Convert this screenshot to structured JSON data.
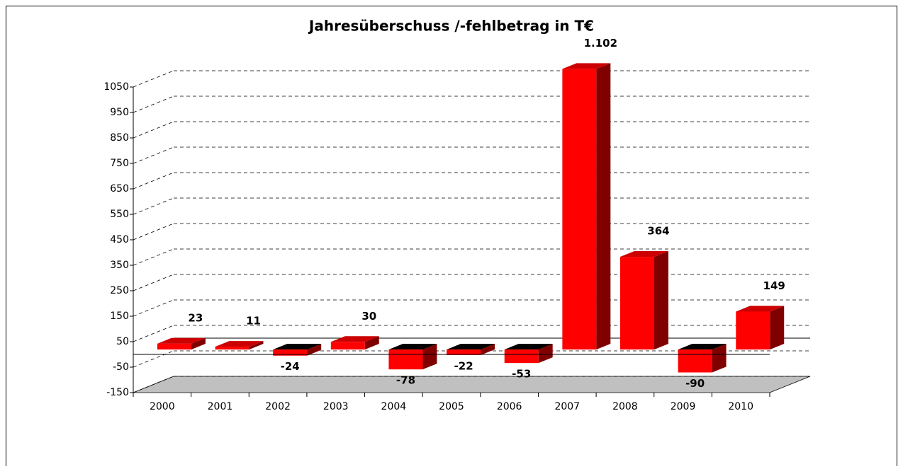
{
  "chart_data": {
    "type": "bar3d",
    "title": "Jahresüberschuss /-fehlbetrag in T€",
    "categories": [
      "2000",
      "2001",
      "2002",
      "2003",
      "2004",
      "2005",
      "2006",
      "2007",
      "2008",
      "2009",
      "2010"
    ],
    "values": [
      23,
      11,
      -24,
      30,
      -78,
      -22,
      -53,
      1102,
      364,
      -90,
      149
    ],
    "value_labels": [
      "23",
      "11",
      "-24",
      "30",
      "-78",
      "-22",
      "-53",
      "1.102",
      "364",
      "-90",
      "149"
    ],
    "color": "#ff0000",
    "ylim": [
      -150,
      1050
    ],
    "yticks": [
      -150,
      -50,
      50,
      150,
      250,
      350,
      450,
      550,
      650,
      750,
      850,
      950,
      1050
    ],
    "grid": true
  }
}
